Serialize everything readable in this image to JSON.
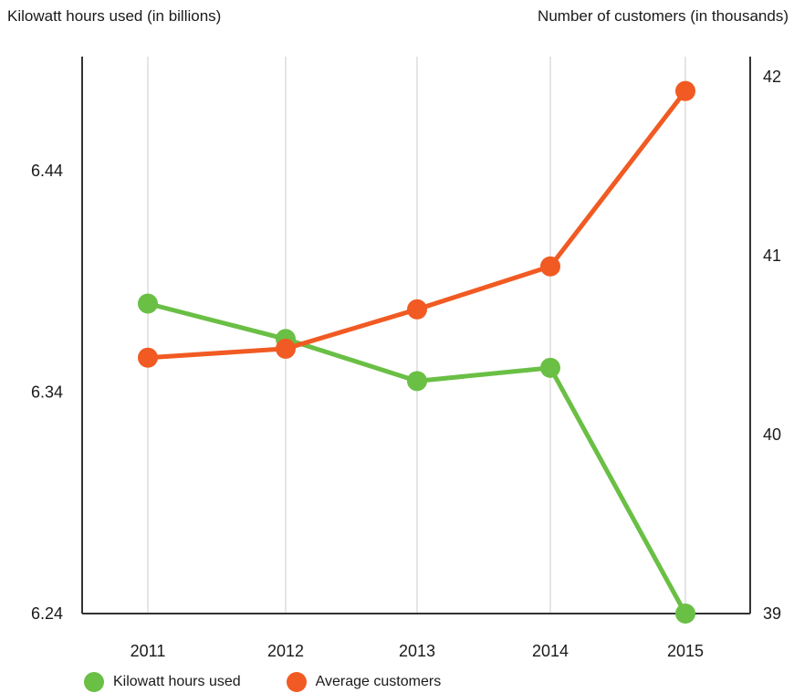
{
  "chart_data": {
    "type": "line",
    "title": "",
    "ylabel_left": "Kilowatt hours used (in billions)",
    "ylabel_right": "Number of customers (in thousands)",
    "categories": [
      "2011",
      "2012",
      "2013",
      "2014",
      "2015"
    ],
    "y_left_ticks": [
      "6.24",
      "6.34",
      "6.44"
    ],
    "y_right_ticks": [
      "39",
      "40",
      "41",
      "42"
    ],
    "ylim_left": [
      6.24,
      6.48
    ],
    "ylim_right": [
      39,
      42
    ],
    "series": [
      {
        "name": "Kilowatt hours used",
        "axis": "left",
        "color": "#6abf45",
        "values": [
          6.38,
          6.364,
          6.345,
          6.351,
          6.24
        ]
      },
      {
        "name": "Average customers",
        "axis": "right",
        "color": "#f15a22",
        "values": [
          40.43,
          40.48,
          40.7,
          40.94,
          41.92
        ]
      }
    ],
    "grid": "vertical",
    "legend_position": "bottom-left"
  }
}
